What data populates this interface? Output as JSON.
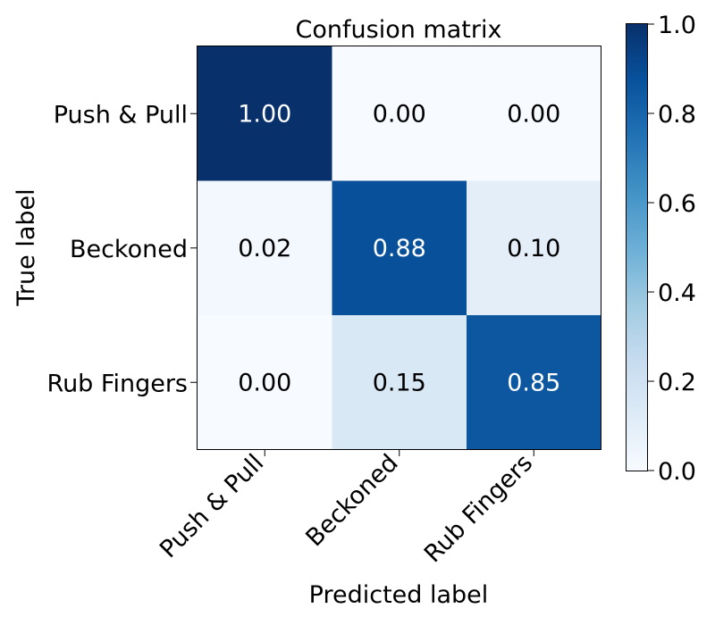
{
  "chart_data": {
    "type": "heatmap",
    "title": "Confusion matrix",
    "xlabel": "Predicted label",
    "ylabel": "True label",
    "x_categories": [
      "Push & Pull",
      "Beckoned",
      "Rub Fingers"
    ],
    "y_categories": [
      "Push & Pull",
      "Beckoned",
      "Rub Fingers"
    ],
    "values": [
      [
        1.0,
        0.0,
        0.0
      ],
      [
        0.02,
        0.88,
        0.1
      ],
      [
        0.0,
        0.15,
        0.85
      ]
    ],
    "cell_labels": [
      [
        "1.00",
        "0.00",
        "0.00"
      ],
      [
        "0.02",
        "0.88",
        "0.10"
      ],
      [
        "0.00",
        "0.15",
        "0.85"
      ]
    ],
    "colormap": "Blues",
    "color_range": [
      0,
      1
    ],
    "colorbar": {
      "ticks": [
        "0.0",
        "0.2",
        "0.4",
        "0.6",
        "0.8",
        "1.0"
      ]
    },
    "grid": false
  }
}
